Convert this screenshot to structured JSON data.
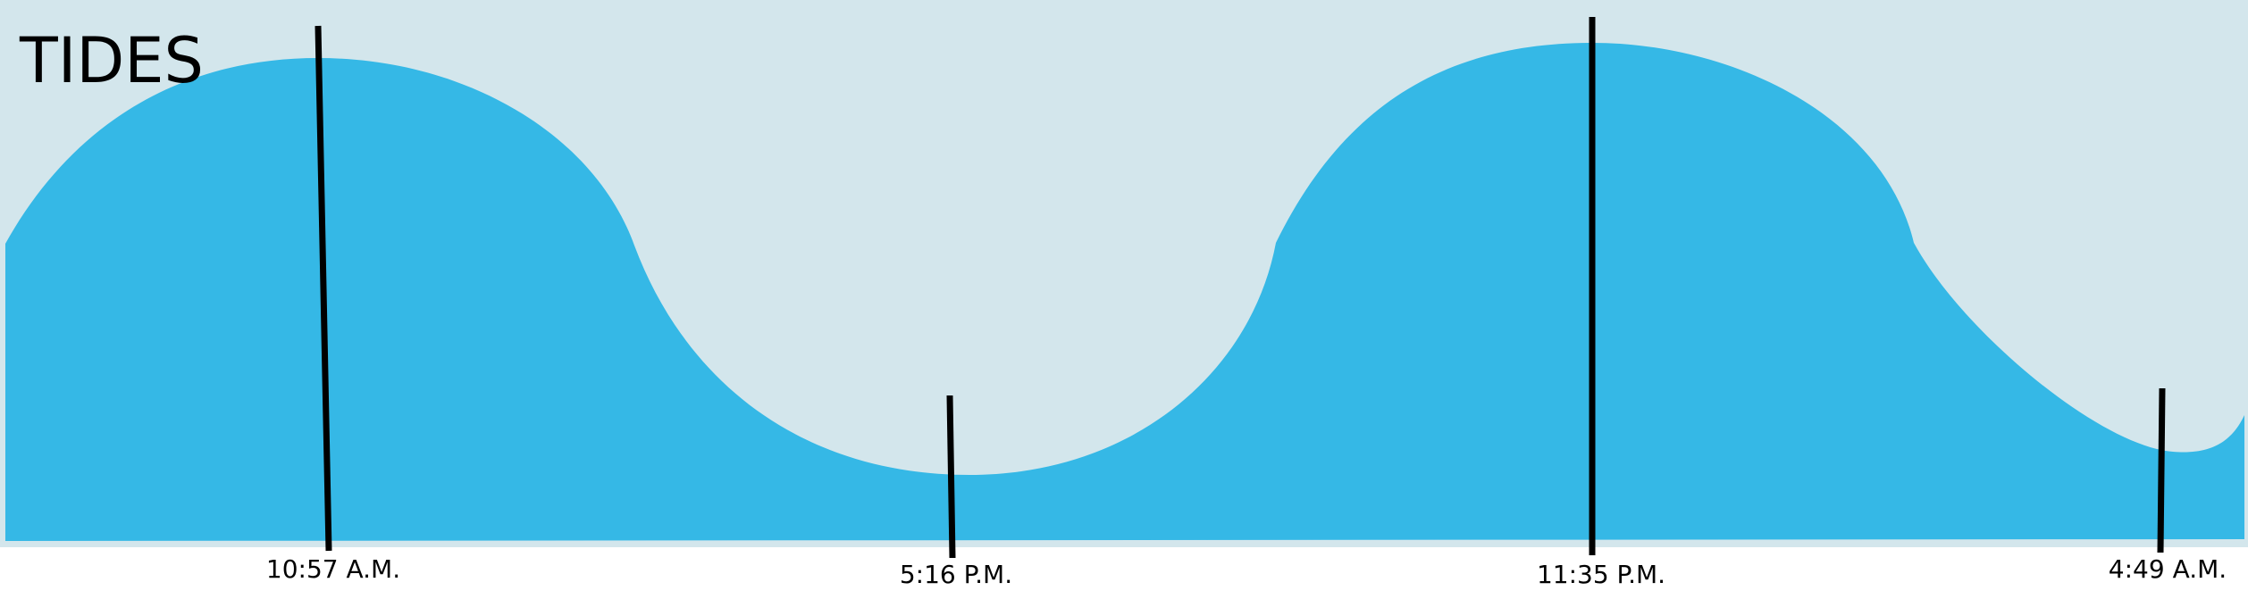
{
  "chart_data": {
    "type": "area",
    "title": "TIDES",
    "xlabel": "",
    "ylabel": "",
    "grid": false,
    "legend": "none",
    "colors": {
      "background": "#d3e6ec",
      "water": "#35b8e6",
      "markers": "#000000"
    },
    "tide_events": [
      {
        "time": "10:57 A.M.",
        "type": "high"
      },
      {
        "time": "5:16 P.M.",
        "type": "low"
      },
      {
        "time": "11:35 P.M.",
        "type": "high"
      },
      {
        "time": "4:49 A.M.",
        "type": "low"
      }
    ]
  }
}
